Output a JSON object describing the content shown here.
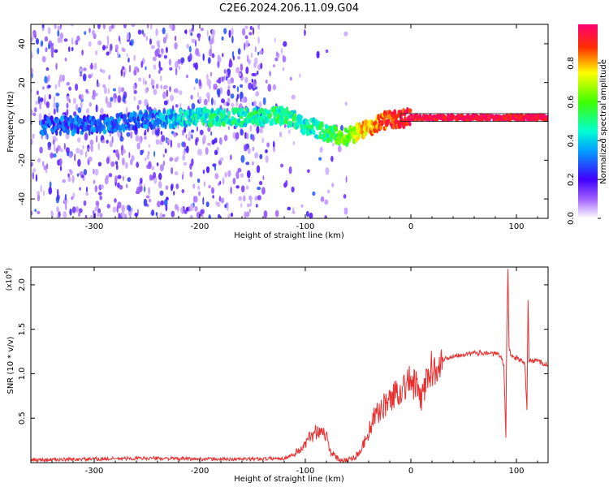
{
  "title": "C2E6.2024.206.11.09.G04",
  "chart_data": [
    {
      "type": "heatmap",
      "xlabel": "Height of straight line (km)",
      "ylabel": "Frequency (Hz)",
      "xlim": [
        -360,
        130
      ],
      "ylim": [
        -50,
        50
      ],
      "x_ticks": [
        "-300",
        "-200",
        "-100",
        "0",
        "100"
      ],
      "x_tick_values": [
        -300,
        -200,
        -100,
        0,
        100
      ],
      "y_ticks": [
        "-40",
        "-20",
        "0",
        "20",
        "40"
      ],
      "y_tick_values": [
        -40,
        -20,
        0,
        20,
        40
      ],
      "colorbar": {
        "label": "Normalized spectral amplitude",
        "range": [
          0,
          1
        ],
        "ticks": [
          "0.0",
          "0.2",
          "0.4",
          "0.6",
          "0.8"
        ],
        "tick_values": [
          0,
          0.2,
          0.4,
          0.6,
          0.8
        ]
      },
      "ridge": [
        {
          "x": -300,
          "f": -2,
          "a": 0.28
        },
        {
          "x": -250,
          "f": 1,
          "a": 0.3
        },
        {
          "x": -200,
          "f": 2,
          "a": 0.45
        },
        {
          "x": -150,
          "f": 2,
          "a": 0.48
        },
        {
          "x": -120,
          "f": 3,
          "a": 0.5
        },
        {
          "x": -100,
          "f": -2,
          "a": 0.45
        },
        {
          "x": -80,
          "f": -6,
          "a": 0.5
        },
        {
          "x": -60,
          "f": -8,
          "a": 0.65
        },
        {
          "x": -40,
          "f": -3,
          "a": 0.8
        },
        {
          "x": -20,
          "f": 1,
          "a": 0.9
        },
        {
          "x": 0,
          "f": 2,
          "a": 0.95
        },
        {
          "x": 50,
          "f": 2,
          "a": 0.97
        },
        {
          "x": 100,
          "f": 2,
          "a": 0.97
        },
        {
          "x": 130,
          "f": 2,
          "a": 0.97
        }
      ]
    },
    {
      "type": "line",
      "xlabel": "Height of straight line (km)",
      "ylabel": "SNR (10 * v/v)",
      "y_exponent_label": "(x10",
      "y_exponent_power": "4",
      "xlim": [
        -360,
        130
      ],
      "ylim": [
        0,
        2.2
      ],
      "x_ticks": [
        "-300",
        "-200",
        "-100",
        "0",
        "100"
      ],
      "x_tick_values": [
        -300,
        -200,
        -100,
        0,
        100
      ],
      "y_ticks": [
        "0.5",
        "1.0",
        "1.5",
        "2.0"
      ],
      "y_tick_values": [
        0.5,
        1.0,
        1.5,
        2.0
      ],
      "series": [
        {
          "color": "#e83030",
          "x": [
            -360,
            -300,
            -250,
            -200,
            -150,
            -120,
            -110,
            -100,
            -95,
            -90,
            -85,
            -80,
            -75,
            -70,
            -65,
            -60,
            -55,
            -50,
            -45,
            -40,
            -35,
            -30,
            -25,
            -20,
            -15,
            -10,
            -5,
            0,
            5,
            10,
            15,
            20,
            25,
            30,
            40,
            50,
            60,
            70,
            80,
            85,
            88,
            90,
            91,
            92,
            93,
            95,
            100,
            105,
            108,
            110,
            111,
            112,
            115,
            120,
            125,
            130
          ],
          "y": [
            0.03,
            0.04,
            0.05,
            0.04,
            0.04,
            0.05,
            0.1,
            0.2,
            0.3,
            0.35,
            0.38,
            0.3,
            0.1,
            0.05,
            0.03,
            0.03,
            0.05,
            0.1,
            0.2,
            0.35,
            0.5,
            0.58,
            0.65,
            0.7,
            0.78,
            0.82,
            0.88,
            0.92,
            0.85,
            0.7,
            0.95,
            1.05,
            1.12,
            1.16,
            1.2,
            1.22,
            1.23,
            1.24,
            1.22,
            1.2,
            1.1,
            0.3,
            1.6,
            2.15,
            1.3,
            1.2,
            1.18,
            1.14,
            1.1,
            0.6,
            1.8,
            1.15,
            1.14,
            1.15,
            1.12,
            1.1
          ]
        }
      ]
    }
  ]
}
